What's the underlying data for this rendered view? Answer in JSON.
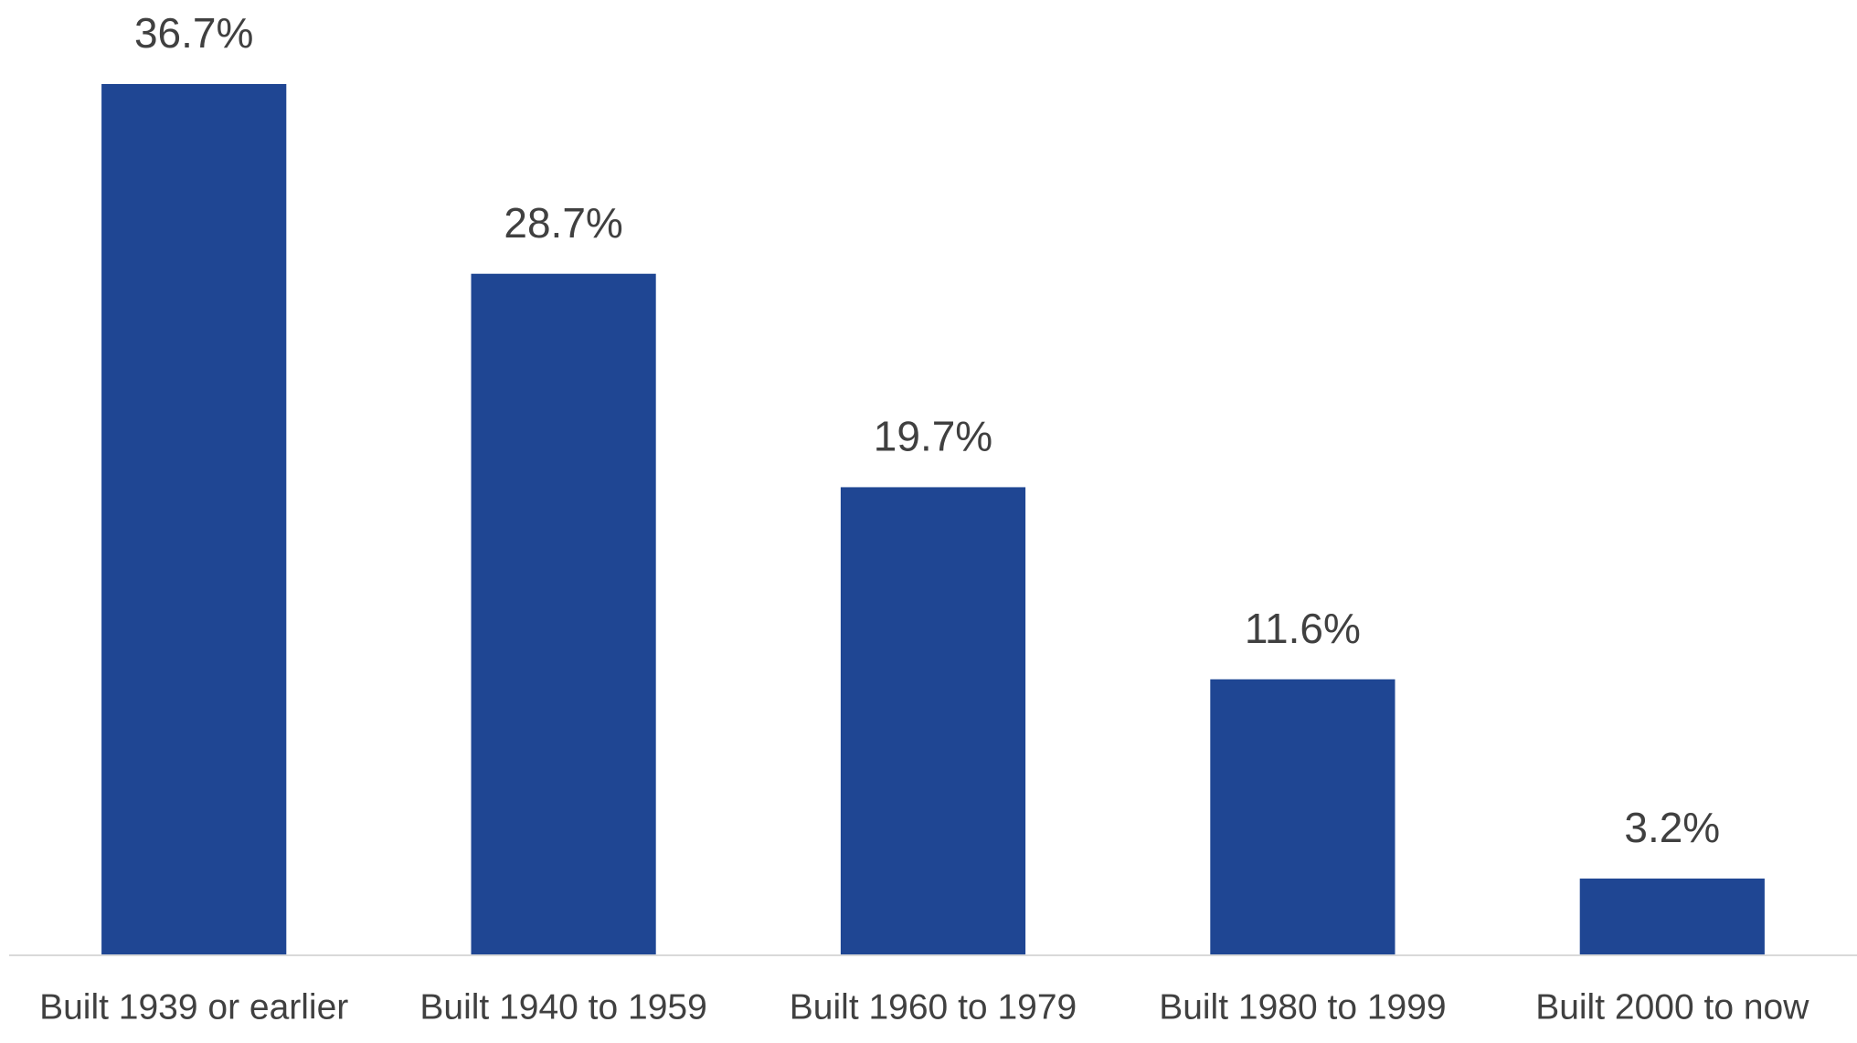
{
  "chart_data": {
    "type": "bar",
    "categories": [
      "Built 1939 or earlier",
      "Built 1940 to 1959",
      "Built 1960 to 1979",
      "Built 1980 to 1999",
      "Built 2000 to now"
    ],
    "values": [
      36.7,
      28.7,
      19.7,
      11.6,
      3.2
    ],
    "value_labels": [
      "36.7%",
      "28.7%",
      "19.7%",
      "11.6%",
      "3.2%"
    ],
    "color": "#1f4693"
  }
}
